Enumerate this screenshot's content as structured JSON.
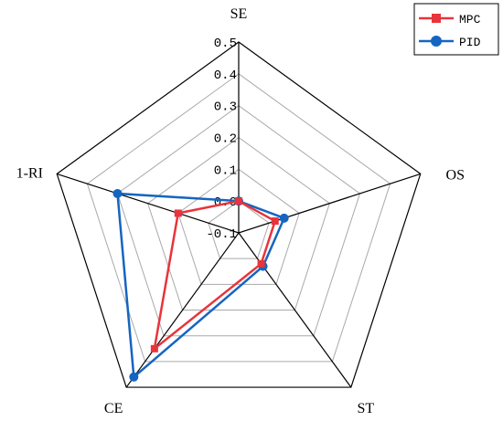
{
  "chart_data": {
    "type": "radar",
    "axes": [
      "SE",
      "OS",
      "ST",
      "CE",
      "1-RI"
    ],
    "tick_values": [
      -0.1,
      0,
      0.1,
      0.2,
      0.3,
      0.4,
      0.5
    ],
    "tick_labels": [
      "-0.1",
      "0.0",
      "0.1",
      "0.2",
      "0.3",
      "0.4",
      "0.5"
    ],
    "range": [
      -0.1,
      0.5
    ],
    "grid": true,
    "legend_position": "top-right",
    "series": [
      {
        "name": "MPC",
        "color": "#e8343b",
        "marker": "square",
        "values": [
          0.0,
          0.02,
          0.02,
          0.35,
          0.1
        ]
      },
      {
        "name": "PID",
        "color": "#1565c0",
        "marker": "circle",
        "values": [
          0.0,
          0.05,
          0.03,
          0.46,
          0.3
        ]
      }
    ]
  }
}
